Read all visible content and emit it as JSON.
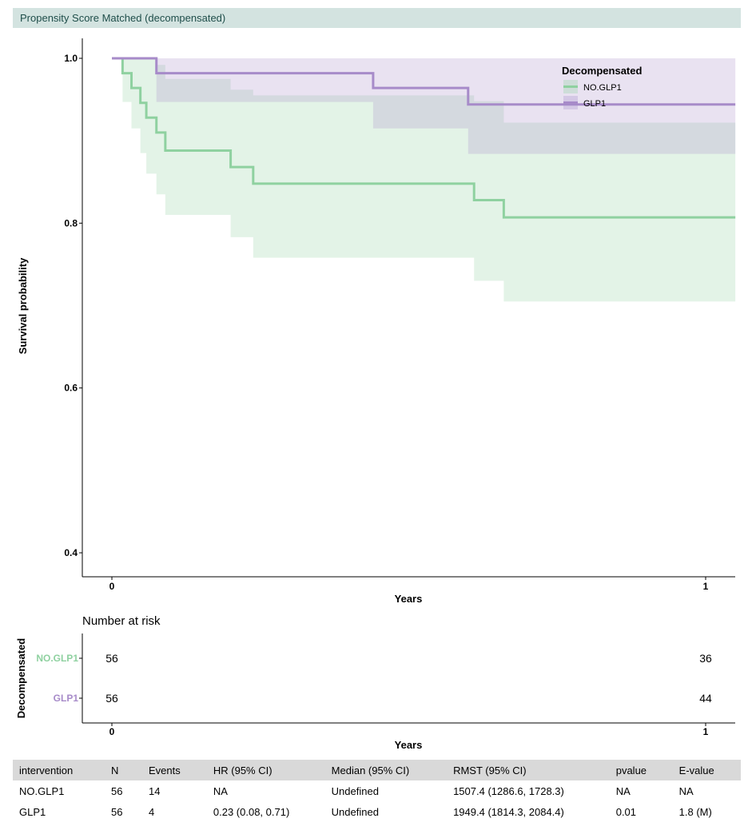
{
  "title": "Propensity Score Matched (decompensated)",
  "chart_data": {
    "type": "line",
    "subtype": "kaplan-meier",
    "xlabel": "Years",
    "ylabel": "Survival probability",
    "xlim": [
      0,
      1.05
    ],
    "ylim": [
      0.37,
      1.03
    ],
    "x_ticks": [
      0,
      1
    ],
    "y_ticks": [
      0.4,
      0.6,
      0.8,
      1.0
    ],
    "y_tick_labels": [
      "0.4",
      "0.6",
      "0.8",
      "1.0"
    ],
    "grid": false,
    "legend": {
      "title": "Decompensated",
      "position": "top-right"
    },
    "series": [
      {
        "name": "NO.GLP1",
        "color": "#8fd1a0",
        "fill": "#e2f2e8",
        "steps": [
          [
            0,
            1.0
          ],
          [
            0.018,
            0.982
          ],
          [
            0.033,
            0.964
          ],
          [
            0.048,
            0.946
          ],
          [
            0.058,
            0.928
          ],
          [
            0.075,
            0.91
          ],
          [
            0.09,
            0.888
          ],
          [
            0.2,
            0.868
          ],
          [
            0.238,
            0.848
          ],
          [
            0.61,
            0.828
          ],
          [
            0.66,
            0.807
          ],
          [
            1.05,
            0.807
          ]
        ],
        "ci_upper": [
          [
            0,
            1.0
          ],
          [
            0.018,
            1.0
          ],
          [
            0.033,
            1.0
          ],
          [
            0.048,
            1.0
          ],
          [
            0.058,
            1.0
          ],
          [
            0.075,
            0.992
          ],
          [
            0.09,
            0.975
          ],
          [
            0.2,
            0.962
          ],
          [
            0.238,
            0.955
          ],
          [
            0.61,
            0.948
          ],
          [
            0.66,
            0.922
          ],
          [
            1.05,
            0.922
          ]
        ],
        "ci_lower": [
          [
            0,
            1.0
          ],
          [
            0.018,
            0.947
          ],
          [
            0.033,
            0.915
          ],
          [
            0.048,
            0.885
          ],
          [
            0.058,
            0.86
          ],
          [
            0.075,
            0.835
          ],
          [
            0.09,
            0.81
          ],
          [
            0.2,
            0.783
          ],
          [
            0.238,
            0.758
          ],
          [
            0.61,
            0.73
          ],
          [
            0.66,
            0.705
          ],
          [
            1.05,
            0.705
          ]
        ]
      },
      {
        "name": "GLP1",
        "color": "#a78bc9",
        "fill": "#eadcef",
        "steps": [
          [
            0,
            1.0
          ],
          [
            0.075,
            0.982
          ],
          [
            0.44,
            0.964
          ],
          [
            0.6,
            0.944
          ],
          [
            1.05,
            0.944
          ]
        ],
        "ci_upper": [
          [
            0,
            1.0
          ],
          [
            1.05,
            1.0
          ]
        ],
        "ci_lower": [
          [
            0,
            1.0
          ],
          [
            0.075,
            0.947
          ],
          [
            0.44,
            0.915
          ],
          [
            0.6,
            0.884
          ],
          [
            1.05,
            0.884
          ]
        ]
      }
    ],
    "risk_table": {
      "title": "Number at risk",
      "ylabel": "Decompensated",
      "xlabel": "Years",
      "rows": [
        {
          "name": "NO.GLP1",
          "color": "#8fd1a0",
          "at_0": "56",
          "at_1": "36"
        },
        {
          "name": "GLP1",
          "color": "#a78bc9",
          "at_0": "56",
          "at_1": "44"
        }
      ]
    }
  },
  "results_table": {
    "columns": [
      "intervention",
      "N",
      "Events",
      "HR (95% CI)",
      "Median (95% CI)",
      "RMST (95% CI)",
      "pvalue",
      "E-value"
    ],
    "rows": [
      [
        "NO.GLP1",
        "56",
        "14",
        "NA",
        "Undefined",
        "1507.4 (1286.6, 1728.3)",
        "NA",
        "NA"
      ],
      [
        "GLP1",
        "56",
        "4",
        "0.23 (0.08, 0.71)",
        "Undefined",
        "1949.4 (1814.3, 2084.4)",
        "0.01",
        "1.8 (M)"
      ]
    ]
  }
}
